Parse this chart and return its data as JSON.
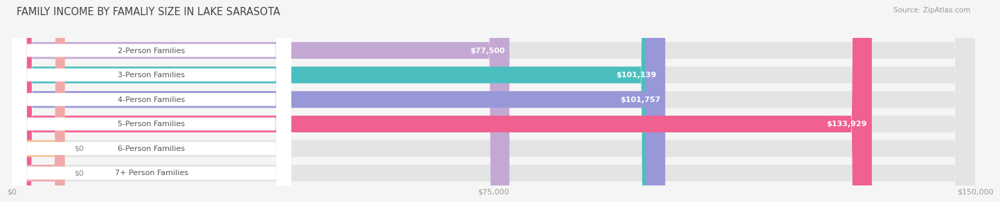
{
  "title": "FAMILY INCOME BY FAMALIY SIZE IN LAKE SARASOTA",
  "source": "Source: ZipAtlas.com",
  "categories": [
    "2-Person Families",
    "3-Person Families",
    "4-Person Families",
    "5-Person Families",
    "6-Person Families",
    "7+ Person Families"
  ],
  "values": [
    77500,
    101139,
    101757,
    133929,
    0,
    0
  ],
  "bar_colors": [
    "#c4a8d4",
    "#4bbfbf",
    "#9898d8",
    "#f06090",
    "#f5c898",
    "#f0a8a8"
  ],
  "value_labels": [
    "$77,500",
    "$101,139",
    "$101,757",
    "$133,929",
    "$0",
    "$0"
  ],
  "xmax": 150000,
  "xticklabels": [
    "$0",
    "$75,000",
    "$150,000"
  ],
  "background_color": "#f5f5f5",
  "bar_bg_color": "#e4e4e4",
  "title_fontsize": 10.5,
  "source_fontsize": 7.5,
  "label_fontsize": 8,
  "value_fontsize": 8
}
